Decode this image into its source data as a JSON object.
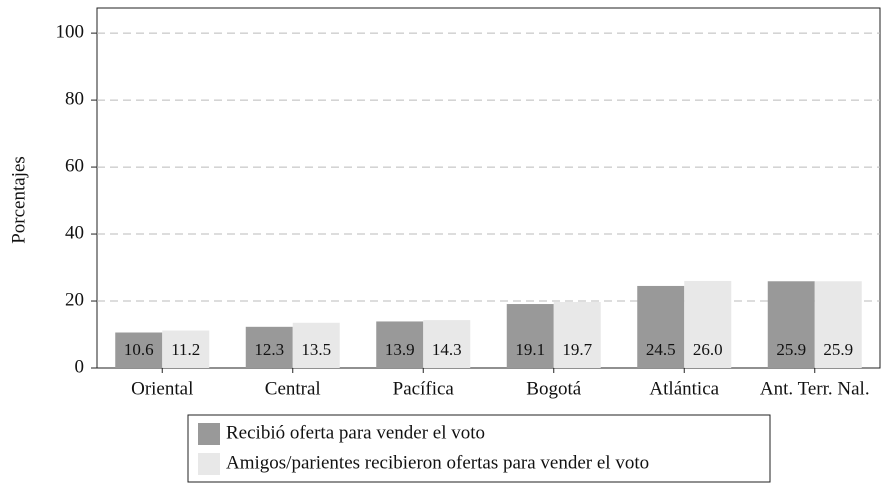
{
  "chart_data": {
    "type": "bar",
    "y_label": "Porcentajes",
    "categories": [
      "Oriental",
      "Central",
      "Pacífica",
      "Bogotá",
      "Atlántica",
      "Ant. Terr. Nal."
    ],
    "series": [
      {
        "name": "Recibió oferta para vender el voto",
        "color": "#999999",
        "values": [
          10.6,
          12.3,
          13.9,
          19.1,
          24.5,
          25.9
        ],
        "value_labels": [
          "10.6",
          "12.3",
          "13.9",
          "19.1",
          "24.5",
          "25.9"
        ]
      },
      {
        "name": "Amigos/parientes recibieron ofertas para vender el voto",
        "color": "#e8e8e8",
        "values": [
          11.2,
          13.5,
          14.3,
          19.7,
          26.0,
          25.9
        ],
        "value_labels": [
          "11.2",
          "13.5",
          "14.3",
          "19.7",
          "26.0",
          "25.9"
        ]
      }
    ],
    "ylim": [
      0,
      107.5
    ],
    "yticks": [
      0,
      20,
      40,
      60,
      80,
      100
    ],
    "grid": true,
    "legend": "bottom"
  }
}
